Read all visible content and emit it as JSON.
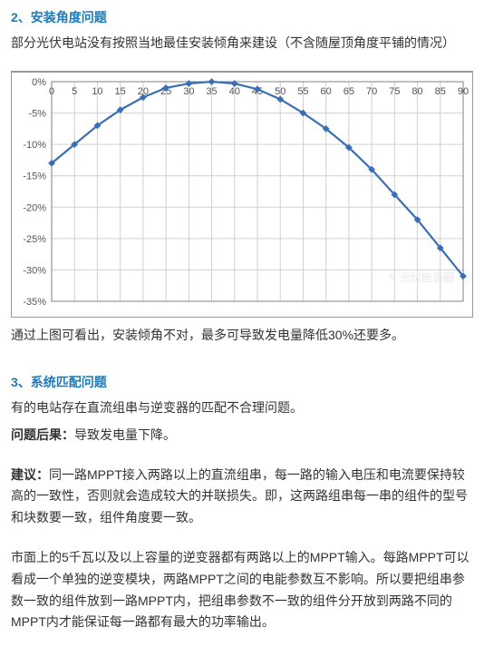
{
  "section2": {
    "title": "2、安装角度问题",
    "intro": "部分光伏电站没有按照当地最佳安装倾角来建设（不含随屋顶角度平铺的情况）",
    "conclusion": "通过上图可看出，安装倾角不对，最多可导致发电量降低30%还要多。"
  },
  "chart": {
    "type": "line",
    "x_label_ticks": [
      "0",
      "5",
      "10",
      "15",
      "20",
      "25",
      "30",
      "35",
      "40",
      "45",
      "50",
      "55",
      "60",
      "65",
      "70",
      "75",
      "80",
      "85",
      "90"
    ],
    "y_ticks": [
      "0%",
      "-5%",
      "-10%",
      "-15%",
      "-20%",
      "-25%",
      "-30%",
      "-35%"
    ],
    "y_min": -35,
    "y_max": 0,
    "series_color": "#3a6fb7",
    "grid_color": "#d0d0d0",
    "border_color": "#808080",
    "background_color": "#ffffff",
    "tick_font_size": 11,
    "points": [
      {
        "x": 0,
        "y": -13
      },
      {
        "x": 5,
        "y": -10
      },
      {
        "x": 10,
        "y": -7
      },
      {
        "x": 15,
        "y": -4.5
      },
      {
        "x": 20,
        "y": -2.5
      },
      {
        "x": 25,
        "y": -1
      },
      {
        "x": 30,
        "y": -0.3
      },
      {
        "x": 35,
        "y": 0
      },
      {
        "x": 40,
        "y": -0.3
      },
      {
        "x": 45,
        "y": -1.2
      },
      {
        "x": 50,
        "y": -2.8
      },
      {
        "x": 55,
        "y": -5
      },
      {
        "x": 60,
        "y": -7.5
      },
      {
        "x": 65,
        "y": -10.5
      },
      {
        "x": 70,
        "y": -14
      },
      {
        "x": 75,
        "y": -18
      },
      {
        "x": 80,
        "y": -22
      },
      {
        "x": 85,
        "y": -26.5
      },
      {
        "x": 90,
        "y": -31
      }
    ],
    "watermark": "光伏能源圈"
  },
  "section3": {
    "title": "3、系统匹配问题",
    "intro": "有的电站存在直流组串与逆变器的匹配不合理问题。",
    "consequence_label": "问题后果：",
    "consequence_text": "导致发电量下降。",
    "suggestion_label": "建议：",
    "suggestion_text": "同一路MPPT接入两路以上的直流组串，每一路的输入电压和电流要保持较高的一致性，否则就会造成较大的并联损失。即，这两路组串每一串的组件的型号和块数要一致，组件角度要一致。",
    "para2": "市面上的5千瓦以及以上容量的逆变器都有两路以上的MPPT输入。每路MPPT可以看成一个单独的逆变模块，两路MPPT之间的电能参数互不影响。所以要把组串参数一致的组件放到一路MPPT内，把组串参数不一致的组件分开放到两路不同的MPPT内才能保证每一路都有最大的功率输出。"
  }
}
